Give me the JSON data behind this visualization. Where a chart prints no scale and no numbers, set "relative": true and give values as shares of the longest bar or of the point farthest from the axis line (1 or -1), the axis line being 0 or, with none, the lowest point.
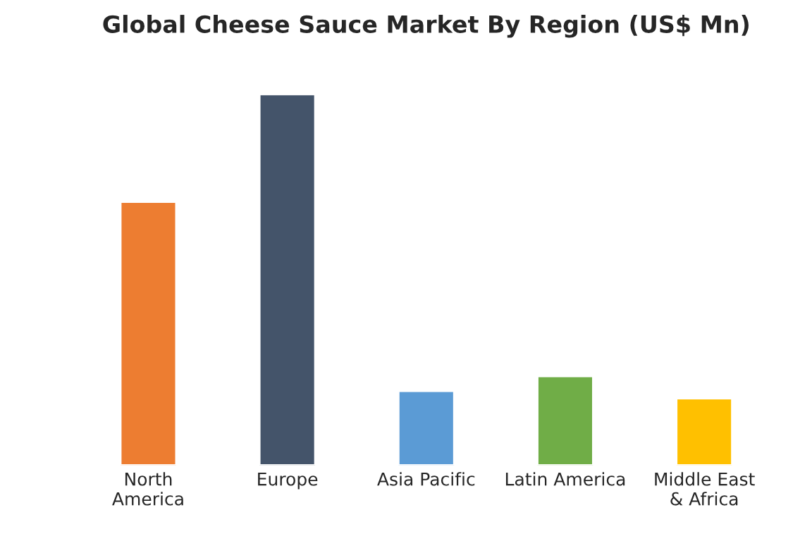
{
  "chart_data": {
    "type": "bar",
    "title": "Global Cheese Sauce Market By Region (US$ Mn)",
    "categories": [
      "North\nAmerica",
      "Europe",
      "Asia Pacific",
      "Latin America",
      "Middle East\n& Africa"
    ],
    "values": [
      0.71,
      1,
      0.2,
      0.24,
      0.18
    ],
    "colors": [
      "#ed7d31",
      "#44546a",
      "#5b9bd5",
      "#70ad47",
      "#ffc000"
    ],
    "relative": true
  }
}
